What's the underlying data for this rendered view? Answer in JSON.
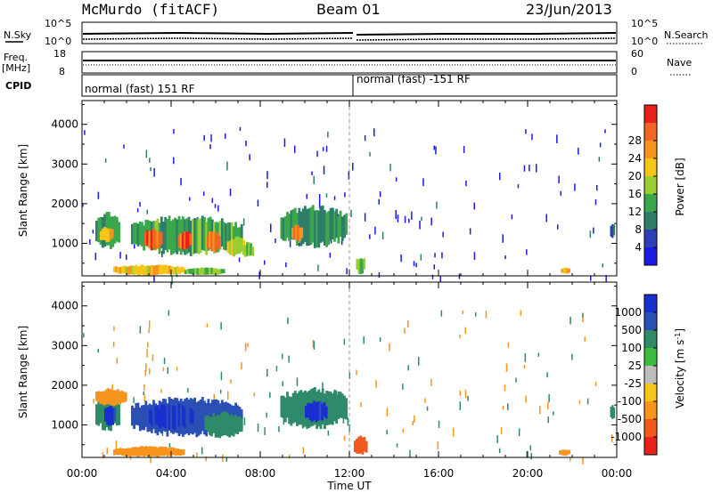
{
  "header": {
    "station": "McMurdo (fitACF)",
    "beam": "Beam 01",
    "date": "23/Jun/2013"
  },
  "top_panels": {
    "nsky_label": "N.Sky",
    "nsky_ticks": [
      "10^5",
      "10^0"
    ],
    "nsearch_label": "N.Search",
    "nsearch_ticks": [
      "10^5",
      "10^0"
    ],
    "freq_label": "Freq.",
    "freq_unit": "[MHz]",
    "freq_ticks": [
      "18",
      "8"
    ],
    "nave_label": "Nave",
    "nave_ticks": [
      "60",
      "0"
    ],
    "cpid_label": "CPID",
    "cpid_segments": [
      {
        "label": "normal (fast) 151 RF",
        "start_hour": 0,
        "end_hour": 12
      },
      {
        "label": "normal (fast) -151 RF",
        "start_hour": 12,
        "end_hour": 24
      }
    ]
  },
  "colorbars": {
    "power": {
      "label": "Power [dB]",
      "ticks": [
        "4",
        "8",
        "12",
        "16",
        "20",
        "24",
        "28"
      ],
      "colors": [
        "#1a1ae6",
        "#2a3fb8",
        "#2e7d6a",
        "#3aa84a",
        "#9acd32",
        "#f5c518",
        "#f7941d",
        "#f26522",
        "#e8211b"
      ]
    },
    "velocity": {
      "label": "Velocity",
      "unit": "[m s",
      "unit_sup": "-1",
      "unit_end": "]",
      "ticks": [
        "1000",
        "500",
        "100",
        "25",
        "-25",
        "-100",
        "-500",
        "-1000"
      ],
      "colors": [
        "#1a2fd0",
        "#2a4fb5",
        "#2f8a68",
        "#3dbb3d",
        "#bdbdbd",
        "#f5c518",
        "#f7941d",
        "#f25a1d",
        "#e8211b"
      ]
    }
  },
  "chart_data": [
    {
      "type": "heatmap",
      "name": "Power",
      "ylabel": "Slant Range [km]",
      "xlabel": "Time UT",
      "x_ticks": [
        "00:00",
        "04:00",
        "08:00",
        "12:00",
        "16:00",
        "20:00",
        "00:00"
      ],
      "xlim_hours": [
        0,
        24
      ],
      "ylim_km": [
        180,
        4600
      ],
      "y_ticks": [
        1000,
        2000,
        3000,
        4000
      ],
      "regions": [
        {
          "t0": 0.6,
          "t1": 1.7,
          "r0": 900,
          "r1": 1750,
          "level": 10
        },
        {
          "t0": 0.8,
          "t1": 1.4,
          "r0": 1050,
          "r1": 1400,
          "level": 20
        },
        {
          "t0": 2.2,
          "t1": 7.2,
          "r0": 750,
          "r1": 1650,
          "level": 12
        },
        {
          "t0": 2.8,
          "t1": 3.6,
          "r0": 850,
          "r1": 1350,
          "level": 26
        },
        {
          "t0": 4.3,
          "t1": 4.9,
          "r0": 850,
          "r1": 1300,
          "level": 26
        },
        {
          "t0": 5.6,
          "t1": 6.2,
          "r0": 800,
          "r1": 1300,
          "level": 25
        },
        {
          "t0": 6.5,
          "t1": 7.3,
          "r0": 700,
          "r1": 1150,
          "level": 18
        },
        {
          "t0": 7.2,
          "t1": 7.7,
          "r0": 650,
          "r1": 1000,
          "level": 14
        },
        {
          "t0": 8.9,
          "t1": 11.9,
          "r0": 950,
          "r1": 1900,
          "level": 10
        },
        {
          "t0": 9.4,
          "t1": 9.9,
          "r0": 1050,
          "r1": 1450,
          "level": 24
        },
        {
          "t0": 1.4,
          "t1": 4.6,
          "r0": 200,
          "r1": 450,
          "level": 20
        },
        {
          "t0": 4.6,
          "t1": 6.4,
          "r0": 200,
          "r1": 380,
          "level": 14
        },
        {
          "t0": 12.3,
          "t1": 12.7,
          "r0": 250,
          "r1": 650,
          "level": 14
        },
        {
          "t0": 21.5,
          "t1": 21.9,
          "r0": 230,
          "r1": 380,
          "level": 20
        },
        {
          "t0": 23.7,
          "t1": 23.9,
          "r0": 1150,
          "r1": 1500,
          "level": 6
        }
      ]
    },
    {
      "type": "heatmap",
      "name": "Velocity",
      "ylabel": "Slant Range [km]",
      "xlabel": "Time UT",
      "x_ticks": [
        "00:00",
        "04:00",
        "08:00",
        "12:00",
        "16:00",
        "20:00",
        "00:00"
      ],
      "xlim_hours": [
        0,
        24
      ],
      "ylim_km": [
        180,
        4600
      ],
      "y_ticks": [
        1000,
        2000,
        3000,
        4000
      ],
      "regions": [
        {
          "t0": 0.6,
          "t1": 1.7,
          "r0": 900,
          "r1": 1750,
          "level": 100
        },
        {
          "t0": 1.0,
          "t1": 1.5,
          "r0": 1000,
          "r1": 1500,
          "level": 1000
        },
        {
          "t0": 2.2,
          "t1": 7.2,
          "r0": 750,
          "r1": 1650,
          "level": 500
        },
        {
          "t0": 3.0,
          "t1": 5.0,
          "r0": 900,
          "r1": 1500,
          "level": 1000
        },
        {
          "t0": 5.5,
          "t1": 7.2,
          "r0": 700,
          "r1": 1300,
          "level": 100
        },
        {
          "t0": 8.9,
          "t1": 11.9,
          "r0": 950,
          "r1": 1900,
          "level": 100
        },
        {
          "t0": 10.0,
          "t1": 11.0,
          "r0": 1100,
          "r1": 1600,
          "level": 1000
        },
        {
          "t0": 0.6,
          "t1": 2.0,
          "r0": 1500,
          "r1": 1900,
          "level": -100
        },
        {
          "t0": 1.4,
          "t1": 4.6,
          "r0": 200,
          "r1": 450,
          "level": -100
        },
        {
          "t0": 12.2,
          "t1": 12.8,
          "r0": 250,
          "r1": 700,
          "level": -500
        },
        {
          "t0": 21.4,
          "t1": 21.9,
          "r0": 230,
          "r1": 380,
          "level": -100
        },
        {
          "t0": 23.7,
          "t1": 23.9,
          "r0": 1150,
          "r1": 1500,
          "level": 100
        }
      ]
    }
  ]
}
